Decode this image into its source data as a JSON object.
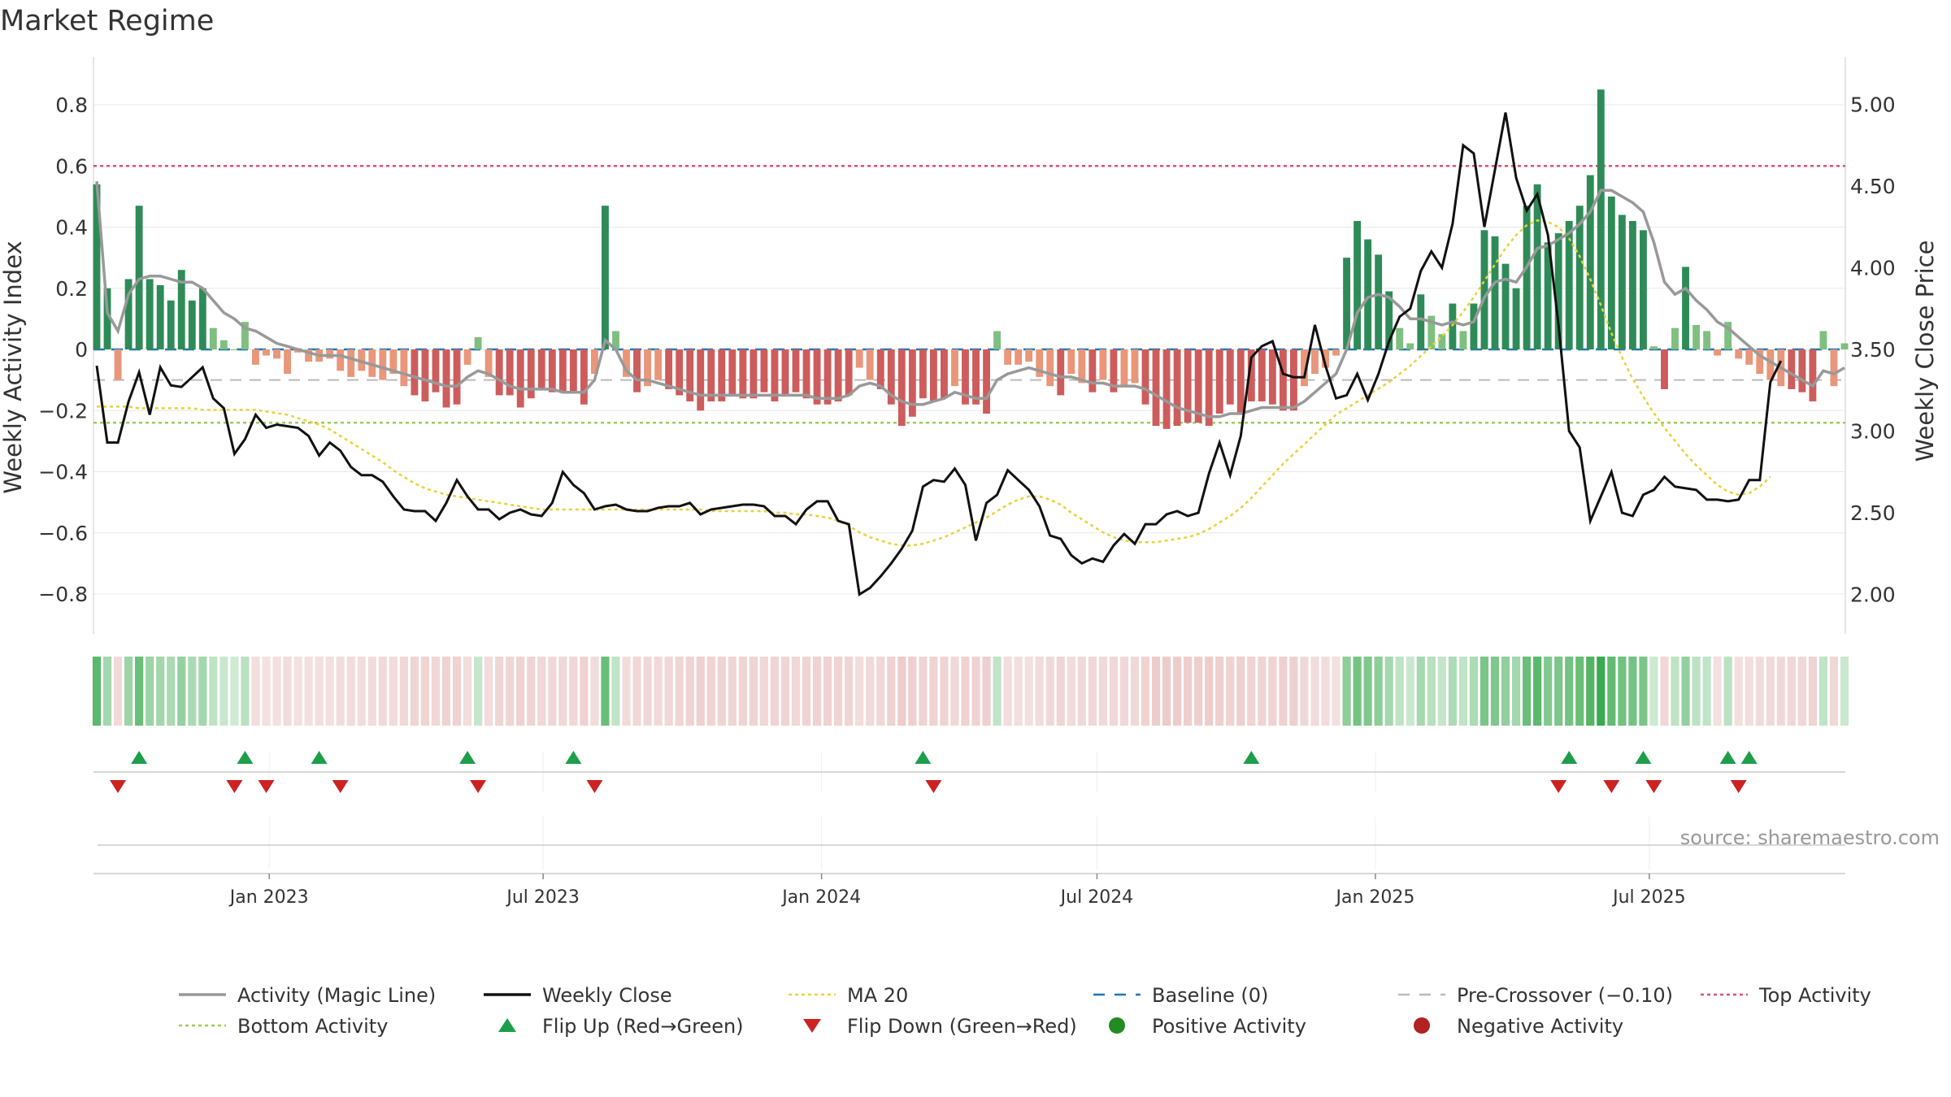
{
  "title": "Market Regime",
  "source": "source: sharemaestro.com",
  "colors": {
    "pos_dark": "#2e8b57",
    "pos_light": "#7fbf7f",
    "neg_dark": "#cd5c5c",
    "neg_light": "#e9967a",
    "activity_line": "#999999",
    "close_line": "#111111",
    "ma_line": "#e8d23a",
    "baseline": "#1f77b4",
    "pre_crossover": "#bbbbbb",
    "top_line": "#e05070",
    "bottom_line": "#9acd5a",
    "flip_up": "#1e9e4a",
    "flip_down": "#cc2222"
  },
  "chart_data": {
    "type": "bar",
    "title": "Market Regime",
    "ylabel": "Weekly Activity Index",
    "y2label": "Weekly Close Price",
    "ylim": [
      -0.92,
      0.92
    ],
    "y2lim": [
      1.8,
      5.2
    ],
    "yticks": [
      "0.8",
      "0.6",
      "0.4",
      "0.2",
      "0",
      "−0.2",
      "−0.4",
      "−0.6",
      "−0.8"
    ],
    "y2ticks": [
      "5.00",
      "4.50",
      "4.00",
      "3.50",
      "3.00",
      "2.50",
      "2.00"
    ],
    "xticks": [
      "Jan 2023",
      "Jul 2023",
      "Jan 2024",
      "Jul 2024",
      "Jan 2025",
      "Jul 2025"
    ],
    "start_date": "2022-09-09",
    "x_spacing": "weekly",
    "reference_lines": {
      "top_activity": 0.6,
      "bottom_activity": -0.24,
      "pre_crossover": -0.1,
      "baseline": 0
    },
    "activity_bars": [
      0.54,
      0.2,
      -0.1,
      0.23,
      0.47,
      0.23,
      0.21,
      0.16,
      0.26,
      0.16,
      0.2,
      0.07,
      0.03,
      0.0,
      0.09,
      -0.05,
      -0.02,
      -0.03,
      -0.08,
      -0.01,
      -0.04,
      -0.04,
      -0.03,
      -0.07,
      -0.09,
      -0.07,
      -0.09,
      -0.1,
      -0.08,
      -0.12,
      -0.15,
      -0.17,
      -0.14,
      -0.19,
      -0.18,
      -0.05,
      0.04,
      -0.09,
      -0.15,
      -0.15,
      -0.19,
      -0.16,
      -0.13,
      -0.14,
      -0.14,
      -0.14,
      -0.18,
      -0.08,
      0.47,
      0.06,
      -0.09,
      -0.14,
      -0.12,
      -0.1,
      -0.13,
      -0.15,
      -0.17,
      -0.2,
      -0.17,
      -0.17,
      -0.15,
      -0.16,
      -0.16,
      -0.14,
      -0.17,
      -0.15,
      -0.14,
      -0.16,
      -0.18,
      -0.18,
      -0.17,
      -0.15,
      -0.06,
      -0.1,
      -0.13,
      -0.18,
      -0.25,
      -0.22,
      -0.16,
      -0.17,
      -0.16,
      -0.12,
      -0.18,
      -0.18,
      -0.21,
      0.06,
      -0.05,
      -0.05,
      -0.04,
      -0.09,
      -0.12,
      -0.15,
      -0.08,
      -0.11,
      -0.14,
      -0.1,
      -0.14,
      -0.12,
      -0.11,
      -0.18,
      -0.25,
      -0.26,
      -0.25,
      -0.24,
      -0.24,
      -0.25,
      -0.21,
      -0.18,
      -0.21,
      -0.17,
      -0.17,
      -0.18,
      -0.2,
      -0.2,
      -0.12,
      -0.08,
      -0.06,
      -0.02,
      0.3,
      0.42,
      0.36,
      0.31,
      0.19,
      0.07,
      0.02,
      0.18,
      0.11,
      0.05,
      0.15,
      0.06,
      0.15,
      0.39,
      0.37,
      0.28,
      0.2,
      0.47,
      0.54,
      0.35,
      0.38,
      0.42,
      0.47,
      0.57,
      0.85,
      0.5,
      0.44,
      0.42,
      0.39,
      0.01,
      -0.13,
      0.07,
      0.27,
      0.08,
      0.06,
      -0.02,
      0.09,
      -0.03,
      -0.05,
      -0.08,
      -0.1,
      -0.12,
      -0.13,
      -0.14,
      -0.17,
      0.06,
      -0.12,
      0.02
    ],
    "activity_line": [
      0.55,
      0.12,
      0.06,
      0.18,
      0.23,
      0.24,
      0.24,
      0.23,
      0.22,
      0.22,
      0.2,
      0.16,
      0.12,
      0.1,
      0.07,
      0.06,
      0.04,
      0.02,
      0.01,
      0.0,
      -0.01,
      -0.02,
      -0.02,
      -0.02,
      -0.03,
      -0.04,
      -0.05,
      -0.06,
      -0.07,
      -0.08,
      -0.09,
      -0.1,
      -0.11,
      -0.12,
      -0.12,
      -0.09,
      -0.07,
      -0.08,
      -0.1,
      -0.12,
      -0.13,
      -0.13,
      -0.13,
      -0.13,
      -0.14,
      -0.14,
      -0.14,
      -0.1,
      0.03,
      0.0,
      -0.07,
      -0.1,
      -0.1,
      -0.11,
      -0.12,
      -0.13,
      -0.14,
      -0.15,
      -0.15,
      -0.15,
      -0.15,
      -0.15,
      -0.15,
      -0.15,
      -0.15,
      -0.15,
      -0.15,
      -0.15,
      -0.16,
      -0.16,
      -0.16,
      -0.15,
      -0.12,
      -0.11,
      -0.12,
      -0.15,
      -0.17,
      -0.18,
      -0.18,
      -0.17,
      -0.16,
      -0.14,
      -0.15,
      -0.16,
      -0.16,
      -0.1,
      -0.08,
      -0.07,
      -0.06,
      -0.07,
      -0.08,
      -0.09,
      -0.09,
      -0.1,
      -0.11,
      -0.11,
      -0.12,
      -0.12,
      -0.12,
      -0.13,
      -0.15,
      -0.17,
      -0.19,
      -0.2,
      -0.21,
      -0.22,
      -0.22,
      -0.21,
      -0.21,
      -0.2,
      -0.19,
      -0.19,
      -0.19,
      -0.19,
      -0.17,
      -0.14,
      -0.11,
      -0.08,
      0.0,
      0.12,
      0.17,
      0.18,
      0.17,
      0.14,
      0.1,
      0.1,
      0.09,
      0.08,
      0.09,
      0.08,
      0.09,
      0.17,
      0.22,
      0.23,
      0.22,
      0.27,
      0.33,
      0.34,
      0.36,
      0.38,
      0.41,
      0.45,
      0.52,
      0.52,
      0.5,
      0.48,
      0.45,
      0.35,
      0.22,
      0.18,
      0.2,
      0.16,
      0.13,
      0.09,
      0.07,
      0.04,
      0.01,
      -0.02,
      -0.04,
      -0.06,
      -0.08,
      -0.1,
      -0.12,
      -0.07,
      -0.08,
      -0.06
    ],
    "weekly_close": [
      3.4,
      2.93,
      2.93,
      3.18,
      3.36,
      3.1,
      3.39,
      3.28,
      3.27,
      3.33,
      3.39,
      3.2,
      3.14,
      2.86,
      2.95,
      3.1,
      3.02,
      3.04,
      3.03,
      3.02,
      2.97,
      2.85,
      2.93,
      2.88,
      2.78,
      2.73,
      2.73,
      2.69,
      2.6,
      2.52,
      2.51,
      2.51,
      2.45,
      2.56,
      2.7,
      2.6,
      2.52,
      2.52,
      2.46,
      2.5,
      2.52,
      2.49,
      2.48,
      2.56,
      2.75,
      2.67,
      2.62,
      2.52,
      2.54,
      2.55,
      2.52,
      2.51,
      2.51,
      2.53,
      2.54,
      2.54,
      2.56,
      2.49,
      2.52,
      2.53,
      2.54,
      2.55,
      2.55,
      2.54,
      2.48,
      2.48,
      2.43,
      2.52,
      2.57,
      2.57,
      2.45,
      2.43,
      2.0,
      2.04,
      2.11,
      2.19,
      2.28,
      2.39,
      2.66,
      2.7,
      2.69,
      2.77,
      2.67,
      2.33,
      2.56,
      2.61,
      2.76,
      2.7,
      2.64,
      2.54,
      2.36,
      2.34,
      2.24,
      2.19,
      2.22,
      2.2,
      2.3,
      2.37,
      2.31,
      2.43,
      2.43,
      2.49,
      2.51,
      2.48,
      2.5,
      2.74,
      2.93,
      2.73,
      2.97,
      3.45,
      3.52,
      3.55,
      3.35,
      3.33,
      3.33,
      3.65,
      3.4,
      3.2,
      3.22,
      3.35,
      3.19,
      3.35,
      3.55,
      3.7,
      3.75,
      3.98,
      4.1,
      4.0,
      4.27,
      4.75,
      4.7,
      4.25,
      4.6,
      4.95,
      4.55,
      4.35,
      4.45,
      4.2,
      3.65,
      3.0,
      2.9,
      2.45,
      2.6,
      2.75,
      2.5,
      2.48,
      2.61,
      2.64,
      2.72,
      2.66,
      2.65,
      2.64,
      2.58,
      2.58,
      2.57,
      2.58,
      2.7,
      2.7,
      3.3,
      3.43
    ],
    "ma20": [
      3.15,
      3.15,
      3.15,
      3.15,
      3.14,
      3.14,
      3.14,
      3.14,
      3.14,
      3.14,
      3.13,
      3.13,
      3.13,
      3.13,
      3.13,
      3.13,
      3.12,
      3.11,
      3.1,
      3.08,
      3.06,
      3.04,
      3.01,
      2.97,
      2.93,
      2.89,
      2.85,
      2.81,
      2.76,
      2.72,
      2.68,
      2.65,
      2.63,
      2.61,
      2.6,
      2.59,
      2.58,
      2.57,
      2.56,
      2.55,
      2.54,
      2.53,
      2.52,
      2.52,
      2.52,
      2.52,
      2.52,
      2.52,
      2.52,
      2.52,
      2.52,
      2.52,
      2.52,
      2.52,
      2.52,
      2.52,
      2.52,
      2.52,
      2.51,
      2.51,
      2.51,
      2.51,
      2.51,
      2.51,
      2.5,
      2.5,
      2.49,
      2.49,
      2.48,
      2.47,
      2.45,
      2.42,
      2.38,
      2.35,
      2.33,
      2.31,
      2.3,
      2.3,
      2.31,
      2.33,
      2.35,
      2.38,
      2.41,
      2.44,
      2.47,
      2.51,
      2.55,
      2.58,
      2.6,
      2.6,
      2.58,
      2.55,
      2.5,
      2.46,
      2.42,
      2.38,
      2.35,
      2.33,
      2.32,
      2.32,
      2.32,
      2.33,
      2.34,
      2.35,
      2.37,
      2.4,
      2.44,
      2.48,
      2.53,
      2.59,
      2.66,
      2.73,
      2.8,
      2.86,
      2.92,
      2.98,
      3.04,
      3.1,
      3.14,
      3.18,
      3.22,
      3.26,
      3.3,
      3.35,
      3.4,
      3.46,
      3.52,
      3.58,
      3.65,
      3.73,
      3.82,
      3.92,
      4.02,
      4.12,
      4.2,
      4.26,
      4.29,
      4.28,
      4.25,
      4.18,
      4.07,
      3.93,
      3.77,
      3.6,
      3.45,
      3.32,
      3.21,
      3.11,
      3.02,
      2.94,
      2.86,
      2.79,
      2.73,
      2.67,
      2.63,
      2.61,
      2.62,
      2.66,
      2.72
    ],
    "flip_up_weeks": [
      4,
      14,
      21,
      35,
      45,
      78,
      109,
      139,
      146,
      154,
      156
    ],
    "flip_down_weeks": [
      2,
      13,
      16,
      23,
      36,
      47,
      79,
      138,
      143,
      147,
      155
    ],
    "regime_strip": [
      0.54,
      0.2,
      -0.1,
      0.23,
      0.47,
      0.23,
      0.21,
      0.16,
      0.26,
      0.16,
      0.2,
      0.07,
      0.03,
      0.0,
      0.09,
      -0.05,
      -0.02,
      -0.03,
      -0.08,
      -0.01,
      -0.04,
      -0.04,
      -0.03,
      -0.07,
      -0.09,
      -0.07,
      -0.09,
      -0.1,
      -0.08,
      -0.12,
      -0.15,
      -0.17,
      -0.14,
      -0.19,
      -0.18,
      -0.05,
      0.04,
      -0.09,
      -0.15,
      -0.15,
      -0.19,
      -0.16,
      -0.13,
      -0.14,
      -0.14,
      -0.14,
      -0.18,
      -0.08,
      0.47,
      0.06,
      -0.09,
      -0.14,
      -0.12,
      -0.1,
      -0.13,
      -0.15,
      -0.17,
      -0.2,
      -0.17,
      -0.17,
      -0.15,
      -0.16,
      -0.16,
      -0.14,
      -0.17,
      -0.15,
      -0.14,
      -0.16,
      -0.18,
      -0.18,
      -0.17,
      -0.15,
      -0.06,
      -0.1,
      -0.13,
      -0.18,
      -0.25,
      -0.22,
      -0.16,
      -0.17,
      -0.16,
      -0.12,
      -0.18,
      -0.18,
      -0.21,
      0.06,
      -0.05,
      -0.05,
      -0.04,
      -0.09,
      -0.12,
      -0.15,
      -0.08,
      -0.11,
      -0.14,
      -0.1,
      -0.14,
      -0.12,
      -0.11,
      -0.18,
      -0.25,
      -0.26,
      -0.25,
      -0.24,
      -0.24,
      -0.25,
      -0.21,
      -0.18,
      -0.21,
      -0.17,
      -0.17,
      -0.18,
      -0.2,
      -0.2,
      -0.12,
      -0.08,
      -0.06,
      -0.02,
      0.3,
      0.42,
      0.36,
      0.31,
      0.19,
      0.07,
      0.02,
      0.18,
      0.11,
      0.05,
      0.15,
      0.06,
      0.15,
      0.39,
      0.37,
      0.28,
      0.2,
      0.47,
      0.54,
      0.35,
      0.38,
      0.42,
      0.47,
      0.57,
      0.85,
      0.5,
      0.44,
      0.42,
      0.39,
      0.01,
      -0.13,
      0.07,
      0.27,
      0.08,
      0.06,
      -0.02,
      0.09,
      -0.03,
      -0.05,
      -0.08,
      -0.1,
      -0.12,
      -0.13,
      -0.14,
      -0.17,
      0.06,
      -0.12,
      0.02
    ],
    "legend": [
      {
        "label": "Activity (Magic Line)",
        "kind": "line",
        "color": "#999999"
      },
      {
        "label": "Weekly Close",
        "kind": "line",
        "color": "#111111"
      },
      {
        "label": "MA 20",
        "kind": "dotted",
        "color": "#e8d23a"
      },
      {
        "label": "Baseline (0)",
        "kind": "dashed",
        "color": "#1f77b4"
      },
      {
        "label": "Pre-Crossover (−0.10)",
        "kind": "dashed",
        "color": "#bbbbbb"
      },
      {
        "label": "Top Activity",
        "kind": "dotted",
        "color": "#e05070"
      },
      {
        "label": "Bottom Activity",
        "kind": "dotted",
        "color": "#9acd5a"
      },
      {
        "label": "Flip Up (Red→Green)",
        "kind": "tri-up",
        "color": "#1e9e4a"
      },
      {
        "label": "Flip Down (Green→Red)",
        "kind": "tri-down",
        "color": "#cc2222"
      },
      {
        "label": "Positive Activity",
        "kind": "dot",
        "color": "#228b22"
      },
      {
        "label": "Negative Activity",
        "kind": "dot",
        "color": "#b22222"
      }
    ]
  }
}
